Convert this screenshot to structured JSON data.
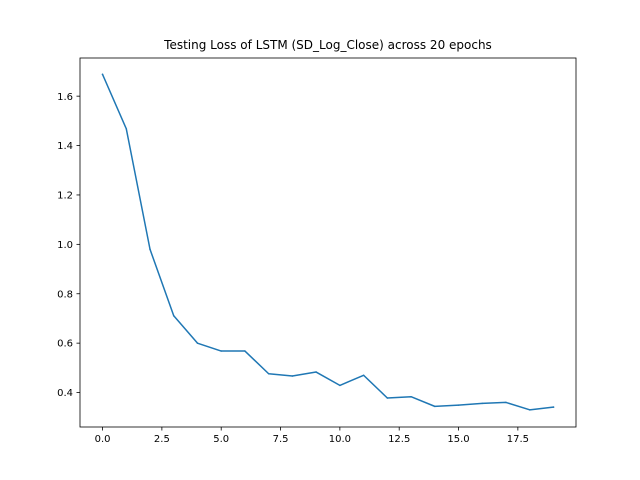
{
  "chart_data": {
    "type": "line",
    "title": "Testing Loss of LSTM (SD_Log_Close) across 20 epochs",
    "xlabel": "",
    "ylabel": "",
    "xlim": [
      -0.95,
      19.95
    ],
    "ylim": [
      0.2605,
      1.7545
    ],
    "x_ticks": [
      0.0,
      2.5,
      5.0,
      7.5,
      10.0,
      12.5,
      15.0,
      17.5
    ],
    "x_tick_labels": [
      "0.0",
      "2.5",
      "5.0",
      "7.5",
      "10.0",
      "12.5",
      "15.0",
      "17.5"
    ],
    "y_ticks": [
      0.4,
      0.6,
      0.8,
      1.0,
      1.2,
      1.4,
      1.6
    ],
    "y_tick_labels": [
      "0.4",
      "0.6",
      "0.8",
      "1.0",
      "1.2",
      "1.4",
      "1.6"
    ],
    "grid": false,
    "x": [
      0,
      1,
      2,
      3,
      4,
      5,
      6,
      7,
      8,
      9,
      10,
      11,
      12,
      13,
      14,
      15,
      16,
      17,
      18,
      19
    ],
    "series": [
      {
        "color": "#1f77b4",
        "values": [
          1.688,
          1.468,
          0.98,
          0.711,
          0.6,
          0.568,
          0.568,
          0.476,
          0.467,
          0.483,
          0.429,
          0.47,
          0.378,
          0.383,
          0.344,
          0.349,
          0.356,
          0.36,
          0.33,
          0.341
        ]
      }
    ]
  }
}
